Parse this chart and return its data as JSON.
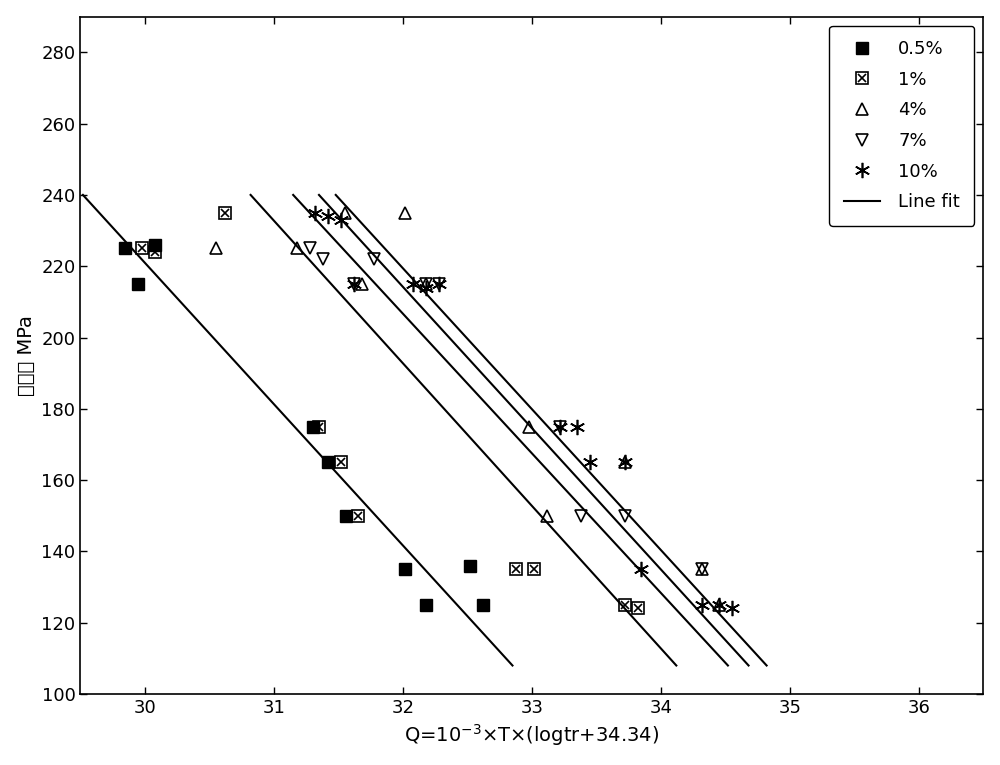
{
  "xlabel": "Q=10$^{-3}$×T×(logtr+34.34)",
  "ylabel": "应力， MPa",
  "xlim": [
    29.5,
    36.5
  ],
  "ylim": [
    100,
    290
  ],
  "xticks": [
    30,
    31,
    32,
    33,
    34,
    35,
    36
  ],
  "yticks": [
    100,
    120,
    140,
    160,
    180,
    200,
    220,
    240,
    260,
    280
  ],
  "background_color": "#ffffff",
  "series": {
    "0.5%": {
      "x": [
        29.85,
        29.95,
        30.08,
        31.3,
        31.42,
        31.56,
        32.02,
        32.18,
        32.52,
        32.62
      ],
      "y": [
        225,
        215,
        226,
        175,
        165,
        150,
        135,
        125,
        136,
        125
      ]
    },
    "1%": {
      "x": [
        29.98,
        30.08,
        30.62,
        31.35,
        31.52,
        31.65,
        32.88,
        33.02,
        33.72,
        33.82
      ],
      "y": [
        225,
        224,
        235,
        175,
        165,
        150,
        135,
        135,
        125,
        124
      ]
    },
    "4%": {
      "x": [
        30.55,
        31.18,
        31.55,
        31.68,
        32.02,
        32.18,
        32.98,
        33.12,
        33.72,
        34.32,
        34.45
      ],
      "y": [
        225,
        225,
        235,
        215,
        235,
        215,
        175,
        150,
        165,
        135,
        125
      ]
    },
    "7%": {
      "x": [
        31.28,
        31.38,
        31.62,
        31.78,
        32.18,
        32.28,
        33.22,
        33.38,
        33.72,
        34.32
      ],
      "y": [
        225,
        222,
        215,
        222,
        215,
        215,
        175,
        150,
        150,
        135
      ]
    },
    "10%": {
      "x": [
        31.32,
        31.42,
        31.52,
        31.62,
        32.08,
        32.18,
        32.28,
        33.22,
        33.35,
        33.45,
        33.72,
        33.85,
        34.32,
        34.45,
        34.55
      ],
      "y": [
        235,
        234,
        233,
        215,
        215,
        214,
        215,
        175,
        175,
        165,
        165,
        135,
        125,
        125,
        124
      ]
    }
  },
  "fit_lines": [
    {
      "x": [
        29.52,
        32.85
      ],
      "y": [
        240,
        108
      ]
    },
    {
      "x": [
        30.82,
        34.12
      ],
      "y": [
        240,
        108
      ]
    },
    {
      "x": [
        31.15,
        34.52
      ],
      "y": [
        240,
        108
      ]
    },
    {
      "x": [
        31.35,
        34.68
      ],
      "y": [
        240,
        108
      ]
    },
    {
      "x": [
        31.48,
        34.82
      ],
      "y": [
        240,
        108
      ]
    }
  ],
  "line_color": "#000000",
  "line_width": 1.5
}
